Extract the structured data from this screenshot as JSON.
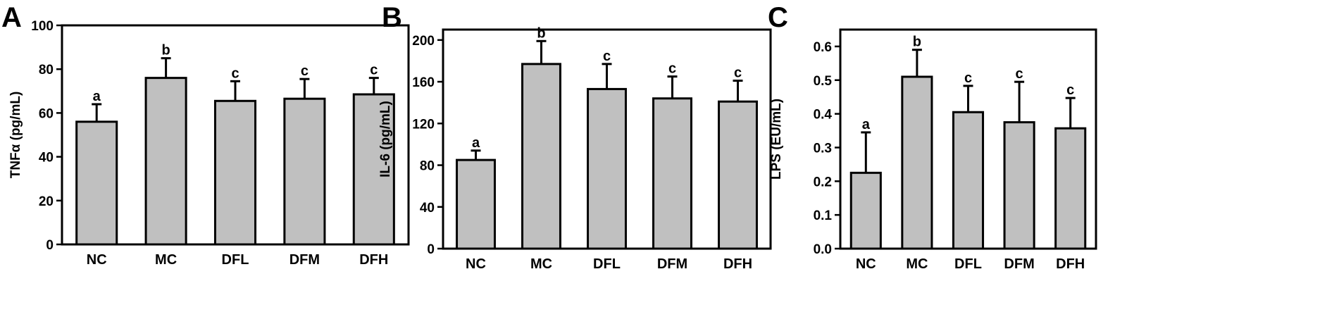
{
  "bar_color": "#c0c0c0",
  "chart_data": [
    {
      "type": "bar",
      "panel": "A",
      "ylabel": "TNFα (pg/mL)",
      "categories": [
        "NC",
        "MC",
        "DFL",
        "DFM",
        "DFH"
      ],
      "values": [
        56,
        76,
        65.5,
        66.5,
        68.5
      ],
      "errors": [
        8,
        9,
        9,
        9,
        7.5
      ],
      "significance": [
        "a",
        "b",
        "c",
        "c",
        "c"
      ],
      "ylim": [
        0,
        100
      ],
      "yticks": [
        0,
        20,
        40,
        60,
        80,
        100
      ],
      "ytick_labels": [
        "0",
        "20",
        "40",
        "60",
        "80",
        "100"
      ]
    },
    {
      "type": "bar",
      "panel": "B",
      "ylabel": "IL-6 (pg/mL)",
      "categories": [
        "NC",
        "MC",
        "DFL",
        "DFM",
        "DFH"
      ],
      "values": [
        85,
        177,
        153,
        144,
        141
      ],
      "errors": [
        9,
        22,
        24,
        21,
        20
      ],
      "significance": [
        "a",
        "b",
        "c",
        "c",
        "c"
      ],
      "ylim": [
        0,
        210
      ],
      "yticks": [
        0,
        40,
        80,
        120,
        160,
        200
      ],
      "ytick_labels": [
        "0",
        "40",
        "80",
        "120",
        "160",
        "200"
      ]
    },
    {
      "type": "bar",
      "panel": "C",
      "ylabel": "LPS (EU/mL)",
      "categories": [
        "NC",
        "MC",
        "DFL",
        "DFM",
        "DFH"
      ],
      "values": [
        0.225,
        0.51,
        0.405,
        0.375,
        0.357
      ],
      "errors": [
        0.12,
        0.08,
        0.078,
        0.12,
        0.09
      ],
      "significance": [
        "a",
        "b",
        "c",
        "c",
        "c"
      ],
      "ylim": [
        0,
        0.65
      ],
      "yticks": [
        0,
        0.1,
        0.2,
        0.3,
        0.4,
        0.5,
        0.6
      ],
      "ytick_labels": [
        "0.0",
        "0.1",
        "0.2",
        "0.3",
        "0.4",
        "0.5",
        "0.6"
      ]
    }
  ]
}
